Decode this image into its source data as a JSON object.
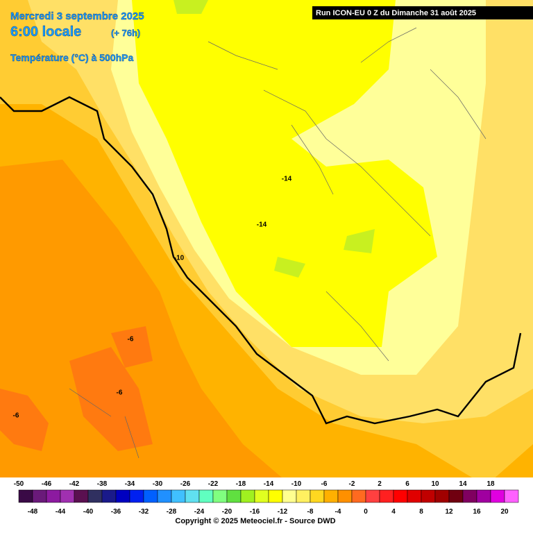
{
  "header": {
    "date": "Mercredi 3 septembre 2025",
    "time": "6:00 locale",
    "lead": "(+ 76h)",
    "field": "Température (°C) à 500hPa",
    "run": "Run ICON-EU 0 Z du Dimanche 31 août 2025"
  },
  "contour_labels": [
    "-14",
    "-14",
    "-10",
    "-6",
    "-6",
    "-6"
  ],
  "legend": {
    "ticks": [
      -50,
      -48,
      -46,
      -44,
      -42,
      -40,
      -38,
      -36,
      -34,
      -32,
      -30,
      -28,
      -26,
      -24,
      -22,
      -20,
      -18,
      -16,
      -14,
      -12,
      -10,
      -8,
      -6,
      -4,
      -2,
      0,
      2,
      4,
      6,
      8,
      10,
      12,
      14,
      16,
      18,
      20
    ],
    "colors": [
      "#3a0a46",
      "#6a1a7a",
      "#8c1aa0",
      "#a030b0",
      "#5a1050",
      "#303060",
      "#1a1a8a",
      "#0000c0",
      "#0020f0",
      "#0060ff",
      "#2090ff",
      "#40c0ff",
      "#60e0f0",
      "#60ffc0",
      "#80ff80",
      "#60e040",
      "#a0f020",
      "#e0ff20",
      "#ffff00",
      "#ffff90",
      "#fff060",
      "#ffd820",
      "#ffb000",
      "#ff9000",
      "#ff6a20",
      "#ff4040",
      "#ff2020",
      "#ff0000",
      "#e00000",
      "#c00000",
      "#a00000",
      "#700010",
      "#800060",
      "#a000a0",
      "#e000e0",
      "#ff60ff"
    ]
  },
  "footer": "Copyright © 2025 Meteociel.fr - Source DWD"
}
